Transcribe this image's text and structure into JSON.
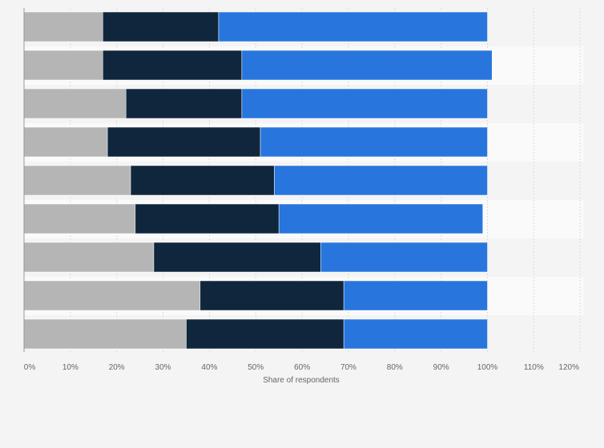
{
  "chart_data": {
    "type": "bar",
    "orientation": "horizontal",
    "stacked": true,
    "categories": [
      "",
      "",
      "",
      "",
      "",
      "",
      "",
      "",
      ""
    ],
    "series": [
      {
        "color": "#b5b5b5",
        "values": [
          17,
          17,
          22,
          18,
          23,
          24,
          28,
          38,
          35
        ]
      },
      {
        "color": "#10263d",
        "values": [
          25,
          30,
          25,
          33,
          31,
          31,
          36,
          31,
          34
        ]
      },
      {
        "color": "#2876dd",
        "values": [
          58,
          54,
          53,
          49,
          46,
          44,
          36,
          31,
          31
        ]
      }
    ],
    "xlabel": "Share of respondents",
    "xlim": [
      0,
      120
    ],
    "xticks": [
      "0%",
      "10%",
      "20%",
      "30%",
      "40%",
      "50%",
      "60%",
      "70%",
      "80%",
      "90%",
      "100%",
      "110%",
      "120%"
    ],
    "grid": true,
    "legend": "none"
  }
}
